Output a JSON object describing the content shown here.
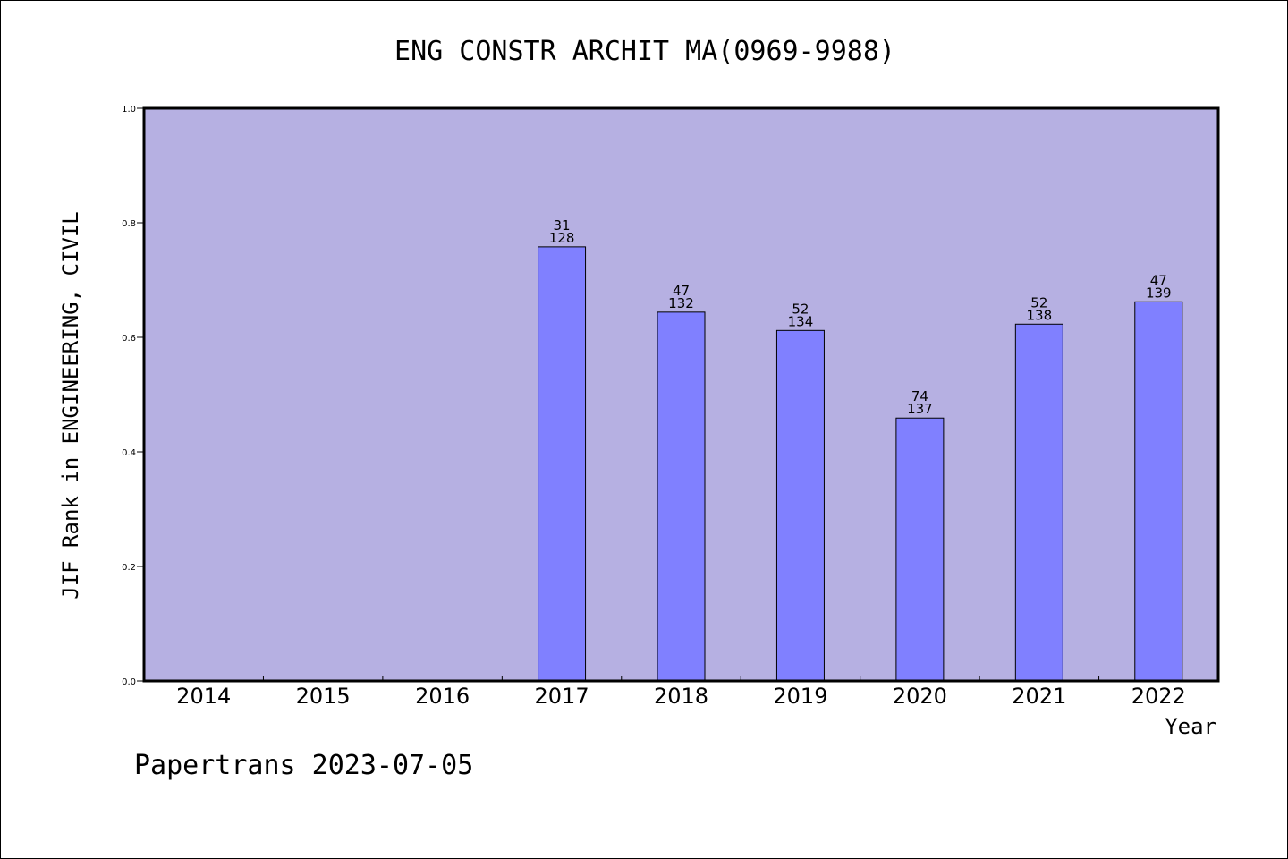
{
  "chart_data": {
    "type": "bar",
    "title": "ENG CONSTR ARCHIT MA(0969-9988)",
    "xlabel": "Year",
    "ylabel": "JIF Rank in ENGINEERING, CIVIL",
    "ylim": [
      0.0,
      1.0
    ],
    "yticks": [
      "0.0",
      "0.2",
      "0.4",
      "0.6",
      "0.8",
      "1.0"
    ],
    "categories": [
      "2014",
      "2015",
      "2016",
      "2017",
      "2018",
      "2019",
      "2020",
      "2021",
      "2022"
    ],
    "values": [
      null,
      null,
      null,
      0.758,
      0.644,
      0.612,
      0.459,
      0.623,
      0.662
    ],
    "rank": [
      null,
      null,
      null,
      "31",
      "47",
      "52",
      "74",
      "52",
      "47"
    ],
    "total": [
      null,
      null,
      null,
      "128",
      "132",
      "134",
      "137",
      "138",
      "139"
    ],
    "grid": false,
    "colors": {
      "plot_background": "#b6b0e2",
      "bar_fill": "#8080ff",
      "bar_stroke": "#000000"
    }
  },
  "footer": "Papertrans 2023-07-05"
}
